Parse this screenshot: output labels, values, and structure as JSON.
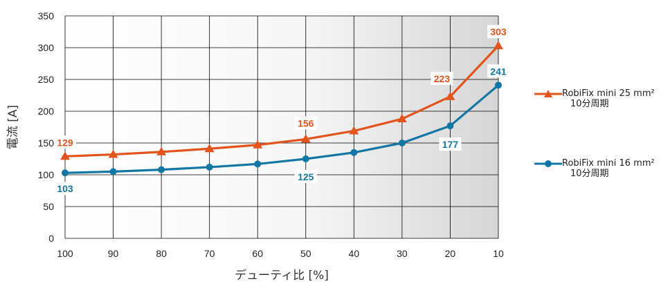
{
  "chart_data": {
    "type": "line",
    "categories": [
      "100",
      "90",
      "80",
      "70",
      "60",
      "50",
      "40",
      "30",
      "20",
      "10"
    ],
    "series": [
      {
        "name": "RobiFix mini 25 mm²",
        "subname": "10分周期",
        "color": "#e2541b",
        "marker": "triangle",
        "values": [
          129,
          132,
          136,
          141,
          147,
          156,
          169,
          188,
          223,
          303
        ],
        "labels": [
          {
            "index": 0,
            "text": "129"
          },
          {
            "index": 5,
            "text": "156"
          },
          {
            "index": 8,
            "text": "223"
          },
          {
            "index": 9,
            "text": "303"
          }
        ]
      },
      {
        "name": "RobiFix mini 16 mm²",
        "subname": "10分周期",
        "color": "#1377a5",
        "marker": "circle",
        "values": [
          103,
          105,
          108,
          112,
          117,
          125,
          135,
          150,
          177,
          241
        ],
        "labels": [
          {
            "index": 0,
            "text": "103"
          },
          {
            "index": 5,
            "text": "125"
          },
          {
            "index": 8,
            "text": "177"
          },
          {
            "index": 9,
            "text": "241"
          }
        ]
      }
    ],
    "yticks": [
      "0",
      "50",
      "100",
      "150",
      "200",
      "250",
      "300",
      "350"
    ],
    "ylim": [
      0,
      350
    ],
    "xlabel": "デューティ比 [%]",
    "ylabel": "電流 [A]",
    "grid": true,
    "legend_position": "right"
  }
}
